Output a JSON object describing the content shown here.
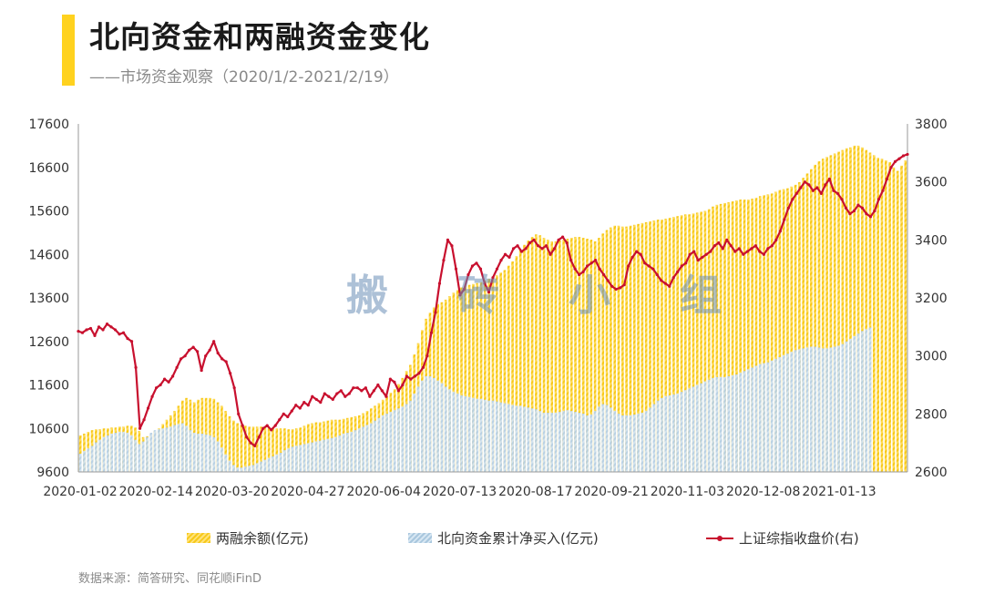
{
  "header": {
    "title": "北向资金和两融资金变化",
    "subtitle": "——市场资金观察（2020/1/2-2021/2/19）"
  },
  "watermark": "搬 砖 小 组",
  "source": "数据来源：简答研究、同花顺iFinD",
  "colors": {
    "margin": "#f7c91a",
    "north": "#b9d1e4",
    "index": "#c8102e",
    "accent": "#ffd21f"
  },
  "chart_data": {
    "type": "bar",
    "x_ticks": [
      "2020-01-02",
      "2020-02-14",
      "2020-03-20",
      "2020-04-27",
      "2020-06-04",
      "2020-07-13",
      "2020-08-17",
      "2020-09-21",
      "2020-11-03",
      "2020-12-08",
      "2021-01-13"
    ],
    "y_left": {
      "min": 9600,
      "max": 17600,
      "ticks": [
        9600,
        10600,
        11600,
        12600,
        13600,
        14600,
        15600,
        16600,
        17600
      ]
    },
    "y_right": {
      "min": 2600,
      "max": 3800,
      "ticks": [
        2600,
        2800,
        3000,
        3200,
        3400,
        3600,
        3800
      ]
    },
    "legend": [
      "两融余额(亿元)",
      "北向资金累计净买入(亿元)",
      "上证综指收盘价(右)"
    ],
    "series": [
      {
        "name": "两融余额(亿元)",
        "type": "bar",
        "axis": "left",
        "values": [
          10440,
          10480,
          10520,
          10560,
          10580,
          10580,
          10600,
          10600,
          10620,
          10620,
          10640,
          10640,
          10660,
          10660,
          10620,
          10540,
          10400,
          10420,
          10480,
          10540,
          10600,
          10700,
          10800,
          10900,
          11000,
          11120,
          11240,
          11300,
          11260,
          11200,
          11260,
          11300,
          11300,
          11300,
          11280,
          11200,
          11120,
          11000,
          10880,
          10780,
          10720,
          10680,
          10660,
          10640,
          10640,
          10640,
          10640,
          10640,
          10620,
          10620,
          10600,
          10600,
          10600,
          10580,
          10580,
          10600,
          10620,
          10660,
          10700,
          10720,
          10740,
          10740,
          10760,
          10780,
          10800,
          10800,
          10800,
          10820,
          10840,
          10860,
          10880,
          10900,
          10950,
          11000,
          11060,
          11120,
          11180,
          11260,
          11340,
          11420,
          11500,
          11620,
          11760,
          11920,
          12060,
          12300,
          12560,
          12860,
          13120,
          13260,
          13380,
          13460,
          13500,
          13560,
          13640,
          13720,
          13780,
          13840,
          13880,
          13900,
          13920,
          13940,
          13960,
          14000,
          14040,
          14080,
          14120,
          14180,
          14240,
          14340,
          14440,
          14560,
          14700,
          14820,
          14920,
          15000,
          15060,
          15040,
          14980,
          14940,
          14900,
          14900,
          14920,
          14940,
          14960,
          14980,
          15000,
          15000,
          14980,
          14960,
          14940,
          14900,
          14980,
          15080,
          15160,
          15220,
          15260,
          15260,
          15240,
          15240,
          15260,
          15280,
          15300,
          15320,
          15340,
          15360,
          15380,
          15400,
          15400,
          15420,
          15440,
          15460,
          15480,
          15500,
          15520,
          15520,
          15540,
          15560,
          15580,
          15600,
          15640,
          15700,
          15740,
          15760,
          15780,
          15800,
          15820,
          15840,
          15860,
          15860,
          15860,
          15880,
          15900,
          15940,
          15960,
          15980,
          16000,
          16040,
          16080,
          16100,
          16120,
          16160,
          16200,
          16260,
          16360,
          16460,
          16560,
          16660,
          16740,
          16800,
          16840,
          16880,
          16920,
          16960,
          17000,
          17040,
          17060,
          17100,
          17100,
          17060,
          17000,
          16940,
          16880,
          16820,
          16800,
          16760,
          16720,
          16600,
          16520,
          16640,
          16760
        ]
      },
      {
        "name": "北向资金累计净买入(亿元)",
        "type": "bar",
        "axis": "left",
        "values": [
          10020,
          10080,
          10140,
          10200,
          10280,
          10340,
          10400,
          10440,
          10480,
          10500,
          10520,
          10520,
          10500,
          10440,
          10340,
          10240,
          10300,
          10400,
          10500,
          10560,
          10580,
          10600,
          10620,
          10640,
          10680,
          10700,
          10720,
          10660,
          10560,
          10500,
          10480,
          10480,
          10460,
          10440,
          10400,
          10300,
          10160,
          10000,
          9860,
          9760,
          9700,
          9700,
          9720,
          9740,
          9760,
          9800,
          9840,
          9880,
          9920,
          9960,
          10000,
          10040,
          10100,
          10140,
          10180,
          10200,
          10220,
          10240,
          10260,
          10280,
          10300,
          10320,
          10340,
          10360,
          10380,
          10400,
          10440,
          10480,
          10500,
          10520,
          10560,
          10600,
          10640,
          10680,
          10720,
          10780,
          10840,
          10900,
          10940,
          10980,
          11020,
          11060,
          11100,
          11160,
          11240,
          11400,
          11560,
          11700,
          11800,
          11800,
          11760,
          11700,
          11640,
          11560,
          11500,
          11440,
          11400,
          11360,
          11340,
          11320,
          11300,
          11280,
          11280,
          11260,
          11240,
          11240,
          11220,
          11200,
          11180,
          11160,
          11140,
          11120,
          11120,
          11100,
          11080,
          11060,
          11040,
          11000,
          10960,
          10960,
          10960,
          10960,
          10980,
          11000,
          11020,
          11000,
          10980,
          10960,
          10940,
          10900,
          10920,
          11000,
          11100,
          11160,
          11140,
          11080,
          11000,
          10940,
          10900,
          10900,
          10900,
          10920,
          10940,
          10960,
          11000,
          11080,
          11160,
          11240,
          11300,
          11340,
          11360,
          11380,
          11400,
          11440,
          11480,
          11520,
          11560,
          11600,
          11640,
          11680,
          11720,
          11760,
          11780,
          11780,
          11780,
          11800,
          11820,
          11840,
          11880,
          11920,
          11960,
          12000,
          12040,
          12080,
          12100,
          12120,
          12160,
          12200,
          12240,
          12280,
          12320,
          12360,
          12400,
          12420,
          12440,
          12460,
          12480,
          12480,
          12460,
          12440,
          12440,
          12460,
          12480,
          12500,
          12540,
          12600,
          12660,
          12720,
          12780,
          12840,
          12880,
          12920
        ]
      },
      {
        "name": "上证综指收盘价(右)",
        "type": "line",
        "axis": "right",
        "values": [
          3085,
          3080,
          3090,
          3095,
          3070,
          3100,
          3090,
          3110,
          3100,
          3090,
          3075,
          3080,
          3060,
          3050,
          2960,
          2750,
          2780,
          2820,
          2860,
          2890,
          2900,
          2920,
          2910,
          2930,
          2960,
          2990,
          3000,
          3020,
          3030,
          3015,
          2950,
          3000,
          3020,
          3050,
          3010,
          2990,
          2980,
          2940,
          2890,
          2800,
          2760,
          2720,
          2700,
          2690,
          2720,
          2750,
          2760,
          2745,
          2760,
          2780,
          2800,
          2790,
          2810,
          2830,
          2820,
          2840,
          2830,
          2860,
          2850,
          2840,
          2870,
          2860,
          2850,
          2870,
          2880,
          2860,
          2870,
          2890,
          2890,
          2880,
          2890,
          2860,
          2880,
          2900,
          2880,
          2860,
          2920,
          2910,
          2880,
          2900,
          2930,
          2920,
          2930,
          2940,
          2960,
          3000,
          3080,
          3150,
          3250,
          3330,
          3400,
          3380,
          3300,
          3210,
          3230,
          3280,
          3310,
          3320,
          3300,
          3250,
          3220,
          3270,
          3300,
          3330,
          3350,
          3340,
          3370,
          3380,
          3360,
          3370,
          3390,
          3400,
          3380,
          3370,
          3380,
          3350,
          3370,
          3400,
          3410,
          3390,
          3330,
          3300,
          3280,
          3290,
          3310,
          3320,
          3330,
          3300,
          3280,
          3260,
          3240,
          3230,
          3235,
          3245,
          3310,
          3340,
          3360,
          3350,
          3320,
          3310,
          3300,
          3280,
          3260,
          3250,
          3240,
          3270,
          3290,
          3310,
          3320,
          3350,
          3360,
          3330,
          3340,
          3350,
          3360,
          3380,
          3390,
          3370,
          3400,
          3380,
          3360,
          3370,
          3350,
          3360,
          3370,
          3380,
          3360,
          3350,
          3370,
          3380,
          3400,
          3430,
          3470,
          3510,
          3540,
          3560,
          3580,
          3600,
          3590,
          3570,
          3580,
          3560,
          3590,
          3610,
          3570,
          3560,
          3540,
          3510,
          3490,
          3500,
          3520,
          3510,
          3490,
          3480,
          3500,
          3540,
          3570,
          3610,
          3650,
          3670,
          3680,
          3690,
          3695
        ]
      }
    ]
  }
}
